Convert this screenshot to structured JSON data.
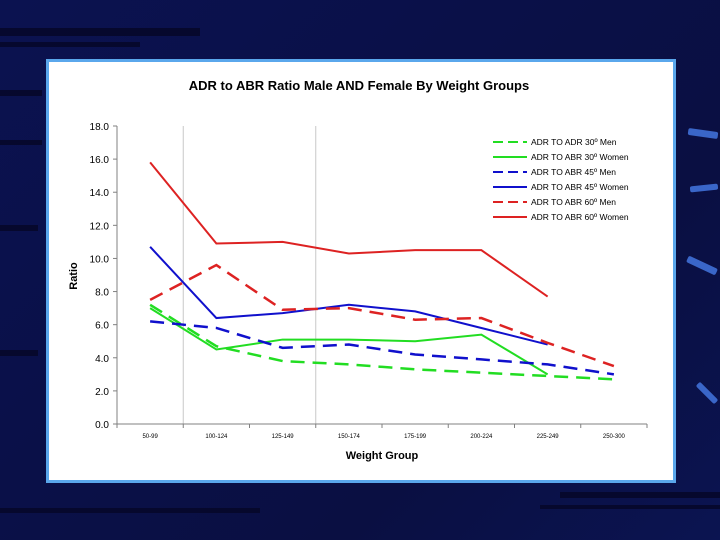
{
  "colors": {
    "background": "#0a0f45",
    "frame_border": "#5aa7ec",
    "axis": "#808080",
    "green": "#22dd22",
    "blue": "#1010cc",
    "red": "#dd2222"
  },
  "chart_data": {
    "type": "line",
    "title": "ADR to ABR Ratio Male AND Female By Weight Groups",
    "xlabel": "Weight Group",
    "ylabel": "Ratio",
    "ylim": [
      0,
      18
    ],
    "yticks": [
      "0.0",
      "2.0",
      "4.0",
      "6.0",
      "8.0",
      "10.0",
      "12.0",
      "14.0",
      "16.0",
      "18.0"
    ],
    "categories": [
      "50-99",
      "100-124",
      "125-149",
      "150-174",
      "175-199",
      "200-224",
      "225-249",
      "250-300"
    ],
    "legend_position": "top-right",
    "series": [
      {
        "name": "ADR TO ADR 30º Men",
        "color": "#22dd22",
        "dashed": true,
        "values": [
          7.2,
          4.7,
          3.8,
          3.6,
          3.3,
          3.1,
          2.9,
          2.7
        ]
      },
      {
        "name": "ADR TO ABR 30º Women",
        "color": "#22dd22",
        "dashed": false,
        "values": [
          7.0,
          4.5,
          5.1,
          5.1,
          5.0,
          5.4,
          3.0,
          null
        ]
      },
      {
        "name": "ADR TO ABR 45º Men",
        "color": "#1010cc",
        "dashed": true,
        "values": [
          6.2,
          5.8,
          4.6,
          4.8,
          4.2,
          3.9,
          3.6,
          3.0
        ]
      },
      {
        "name": "ADR TO ABR 45º Women",
        "color": "#1010cc",
        "dashed": false,
        "values": [
          10.7,
          6.4,
          6.7,
          7.2,
          6.8,
          5.8,
          4.8,
          null
        ]
      },
      {
        "name": "ADR TO ABR 60º Men",
        "color": "#dd2222",
        "dashed": true,
        "values": [
          7.5,
          9.6,
          6.9,
          7.0,
          6.3,
          6.4,
          4.9,
          3.5
        ]
      },
      {
        "name": "ADR TO ABR 60º Women",
        "color": "#dd2222",
        "dashed": false,
        "values": [
          15.8,
          10.9,
          11.0,
          10.3,
          10.5,
          10.5,
          7.7,
          null
        ]
      }
    ]
  }
}
